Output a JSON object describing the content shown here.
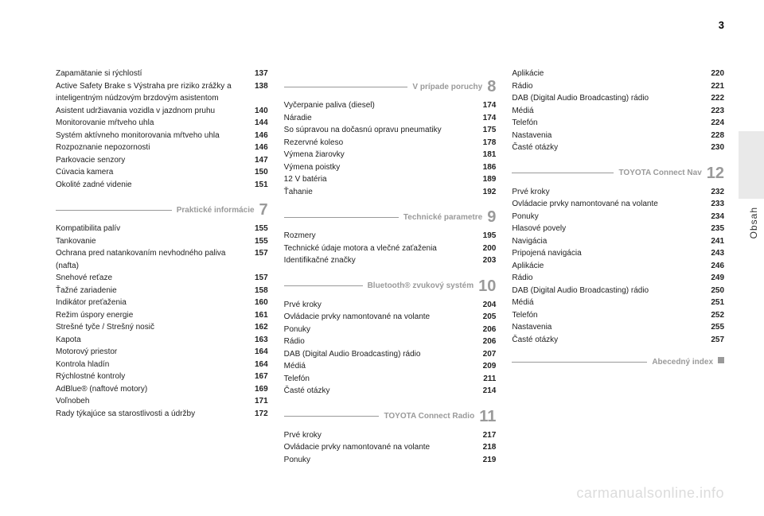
{
  "page_number": "3",
  "side_label": "Obsah",
  "watermark": "carmanualsonline.info",
  "columns": [
    {
      "blocks": [
        {
          "type": "items",
          "items": [
            {
              "label": "Zapamätanie si rýchlostí",
              "page": "137"
            },
            {
              "label": "Active Safety Brake s Výstraha pre riziko zrážky a inteligentným núdzovým brzdovým asistentom",
              "page": "138"
            },
            {
              "label": "Asistent udržiavania vozidla v jazdnom pruhu",
              "page": "140"
            },
            {
              "label": "Monitorovanie mŕtveho uhla",
              "page": "144"
            },
            {
              "label": "Systém aktívneho monitorovania mŕtveho uhla",
              "page": "146"
            },
            {
              "label": "Rozpoznanie nepozornosti",
              "page": "146"
            },
            {
              "label": "Parkovacie senzory",
              "page": "147"
            },
            {
              "label": "Cúvacia kamera",
              "page": "150"
            },
            {
              "label": "Okolité zadné videnie",
              "page": "151"
            }
          ]
        },
        {
          "type": "section",
          "title": "Praktické informácie",
          "num": "7"
        },
        {
          "type": "items",
          "items": [
            {
              "label": "Kompatibilita palív",
              "page": "155"
            },
            {
              "label": "Tankovanie",
              "page": "155"
            },
            {
              "label": "Ochrana pred natankovaním nevhodného paliva (nafta)",
              "page": "157"
            },
            {
              "label": "Snehové reťaze",
              "page": "157"
            },
            {
              "label": "Ťažné zariadenie",
              "page": "158"
            },
            {
              "label": "Indikátor preťaženia",
              "page": "160"
            },
            {
              "label": "Režim úspory energie",
              "page": "161"
            },
            {
              "label": "Strešné tyče / Strešný nosič",
              "page": "162"
            },
            {
              "label": "Kapota",
              "page": "163"
            },
            {
              "label": "Motorový priestor",
              "page": "164"
            },
            {
              "label": "Kontrola hladín",
              "page": "164"
            },
            {
              "label": "Rýchlostné kontroly",
              "page": "167"
            },
            {
              "label": "AdBlue® (naftové motory)",
              "page": "169"
            },
            {
              "label": "Voľnobeh",
              "page": "171"
            },
            {
              "label": "Rady týkajúce sa starostlivosti a údržby",
              "page": "172"
            }
          ]
        }
      ]
    },
    {
      "blocks": [
        {
          "type": "section",
          "title": "V prípade poruchy",
          "num": "8"
        },
        {
          "type": "items",
          "items": [
            {
              "label": "Vyčerpanie paliva (diesel)",
              "page": "174"
            },
            {
              "label": "Náradie",
              "page": "174"
            },
            {
              "label": "So súpravou na dočasnú opravu pneumatiky",
              "page": "175"
            },
            {
              "label": "Rezervné koleso",
              "page": "178"
            },
            {
              "label": "Výmena žiarovky",
              "page": "181"
            },
            {
              "label": "Výmena poistky",
              "page": "186"
            },
            {
              "label": "12 V batéria",
              "page": "189"
            },
            {
              "label": "Ťahanie",
              "page": "192"
            }
          ]
        },
        {
          "type": "section",
          "title": "Technické parametre",
          "num": "9"
        },
        {
          "type": "items",
          "items": [
            {
              "label": "Rozmery",
              "page": "195"
            },
            {
              "label": "Technické údaje motora a vlečné zaťaženia",
              "page": "200"
            },
            {
              "label": "Identifikačné značky",
              "page": "203"
            }
          ]
        },
        {
          "type": "section",
          "title": "Bluetooth® zvukový systém",
          "num": "10"
        },
        {
          "type": "items",
          "items": [
            {
              "label": "Prvé kroky",
              "page": "204"
            },
            {
              "label": "Ovládacie prvky namontované na volante",
              "page": "205"
            },
            {
              "label": "Ponuky",
              "page": "206"
            },
            {
              "label": "Rádio",
              "page": "206"
            },
            {
              "label": "DAB (Digital Audio Broadcasting) rádio",
              "page": "207"
            },
            {
              "label": "Médiá",
              "page": "209"
            },
            {
              "label": "Telefón",
              "page": "211"
            },
            {
              "label": "Časté otázky",
              "page": "214"
            }
          ]
        },
        {
          "type": "section",
          "title": "TOYOTA Connect Radio",
          "num": "11"
        },
        {
          "type": "items",
          "items": [
            {
              "label": "Prvé kroky",
              "page": "217"
            },
            {
              "label": "Ovládacie prvky namontované na volante",
              "page": "218"
            },
            {
              "label": "Ponuky",
              "page": "219"
            }
          ]
        }
      ]
    },
    {
      "blocks": [
        {
          "type": "items",
          "items": [
            {
              "label": "Aplikácie",
              "page": "220"
            },
            {
              "label": "Rádio",
              "page": "221"
            },
            {
              "label": "DAB (Digital Audio Broadcasting) rádio",
              "page": "222"
            },
            {
              "label": "Médiá",
              "page": "223"
            },
            {
              "label": "Telefón",
              "page": "224"
            },
            {
              "label": "Nastavenia",
              "page": "228"
            },
            {
              "label": "Časté otázky",
              "page": "230"
            }
          ]
        },
        {
          "type": "section",
          "title": "TOYOTA Connect Nav",
          "num": "12"
        },
        {
          "type": "items",
          "items": [
            {
              "label": "Prvé kroky",
              "page": "232"
            },
            {
              "label": "Ovládacie prvky namontované na volante",
              "page": "233"
            },
            {
              "label": "Ponuky",
              "page": "234"
            },
            {
              "label": "Hlasové povely",
              "page": "235"
            },
            {
              "label": "Navigácia",
              "page": "241"
            },
            {
              "label": "Pripojená navigácia",
              "page": "243"
            },
            {
              "label": "Aplikácie",
              "page": "246"
            },
            {
              "label": "Rádio",
              "page": "249"
            },
            {
              "label": "DAB (Digital Audio Broadcasting) rádio",
              "page": "250"
            },
            {
              "label": "Médiá",
              "page": "251"
            },
            {
              "label": "Telefón",
              "page": "252"
            },
            {
              "label": "Nastavenia",
              "page": "255"
            },
            {
              "label": "Časté otázky",
              "page": "257"
            }
          ]
        },
        {
          "type": "section",
          "title": "Abecedný index",
          "square": true
        }
      ]
    }
  ]
}
